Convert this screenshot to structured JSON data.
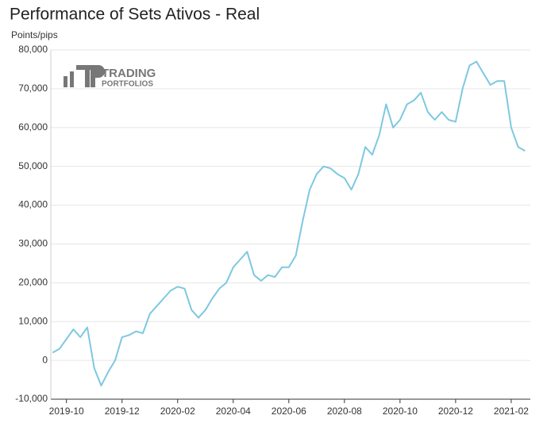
{
  "chart_data": {
    "type": "line",
    "title": "Performance of Sets Ativos - Real",
    "y_label": "Points/pips",
    "logo": [
      "TRADING",
      "PORTFOLIOS"
    ],
    "categories": [
      null,
      null,
      "2019-10",
      null,
      null,
      null,
      null,
      null,
      null,
      null,
      "2019-12",
      null,
      null,
      null,
      null,
      null,
      null,
      null,
      "2020-02",
      null,
      null,
      null,
      null,
      null,
      null,
      null,
      "2020-04",
      null,
      null,
      null,
      null,
      null,
      null,
      null,
      "2020-06",
      null,
      null,
      null,
      null,
      null,
      null,
      null,
      "2020-08",
      null,
      null,
      null,
      null,
      null,
      null,
      null,
      "2020-10",
      null,
      null,
      null,
      null,
      null,
      null,
      null,
      "2020-12",
      null,
      null,
      null,
      null,
      null,
      null,
      null,
      "2021-02",
      null,
      null
    ],
    "series": [
      {
        "color": "#7ec8e0",
        "values": [
          2000,
          3000,
          5500,
          8000,
          6000,
          8500,
          -2000,
          -6500,
          -3000,
          0,
          6000,
          6500,
          7500,
          7000,
          12000,
          14000,
          16000,
          18000,
          19000,
          18500,
          13000,
          11000,
          13000,
          16000,
          18500,
          20000,
          24000,
          26000,
          28000,
          22000,
          20500,
          22000,
          21500,
          24000,
          24000,
          27000,
          36000,
          44000,
          48000,
          50000,
          49500,
          48000,
          47000,
          44000,
          48000,
          55000,
          53000,
          58000,
          66000,
          60000,
          62000,
          66000,
          67000,
          69000,
          64000,
          62000,
          64000,
          62000,
          61500,
          70000,
          76000,
          77000,
          74000,
          71000,
          72000,
          72000,
          60000,
          55000,
          54000
        ]
      }
    ],
    "ylim": [
      -10000,
      80000
    ],
    "yticks": [
      {
        "value": -10000,
        "label": "-10,000"
      },
      0,
      {
        "value": 10000,
        "label": "10,000"
      },
      {
        "value": 20000,
        "label": "20,000"
      },
      {
        "value": 30000,
        "label": "30,000"
      },
      {
        "value": 40000,
        "label": "40,000"
      },
      {
        "value": 50000,
        "label": "50,000"
      },
      {
        "value": 60000,
        "label": "60,000"
      },
      {
        "value": 70000,
        "label": "70,000"
      },
      {
        "value": 80000,
        "label": "80,000"
      }
    ],
    "grid": true
  }
}
